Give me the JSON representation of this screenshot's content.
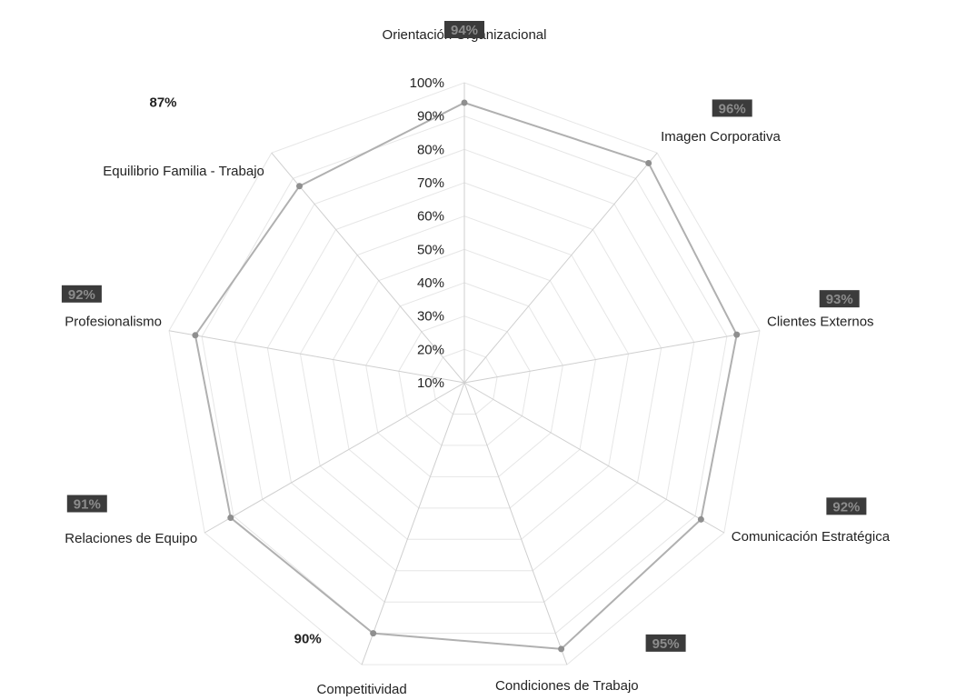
{
  "chart_data": {
    "type": "radar",
    "title": "",
    "categories": [
      "Orientación Organizacional",
      "Imagen Corporativa",
      "Clientes Externos",
      "Comunicación Estratégica",
      "Condiciones de Trabajo",
      "Competitividad",
      "Relaciones de Equipo",
      "Profesionalismo",
      "Equilibrio Familia - Trabajo"
    ],
    "series": [
      {
        "values": [
          94,
          96,
          93,
          92,
          95,
          90,
          91,
          92,
          87
        ]
      }
    ],
    "data_labels": [
      "94%",
      "96%",
      "93%",
      "92%",
      "95%",
      "90%",
      "91%",
      "92%",
      "87%"
    ],
    "data_label_highlighted": [
      true,
      true,
      true,
      true,
      true,
      false,
      true,
      true,
      false
    ],
    "radial_ticks": [
      "10%",
      "20%",
      "30%",
      "40%",
      "50%",
      "60%",
      "70%",
      "80%",
      "90%",
      "100%"
    ],
    "rlim": [
      10,
      100
    ],
    "legend": "none",
    "grid": true,
    "colors": {
      "series_line": "#b0b0b0",
      "marker": "#8f8f8f",
      "grid": "#e6e6e6",
      "axis": "#cfcfcf",
      "highlight_box": "#3b3b3b"
    }
  }
}
